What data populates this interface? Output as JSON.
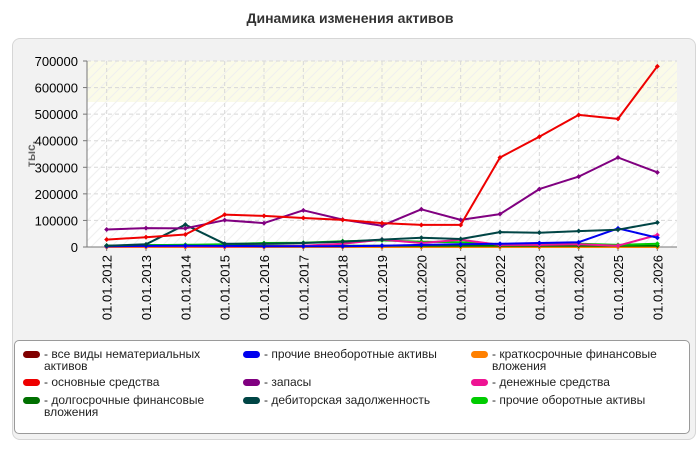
{
  "chart_data": {
    "type": "line",
    "title": "Динамика изменения активов",
    "ylabel": "тыс.",
    "xlabel": "",
    "ylim": [
      0,
      700000
    ],
    "yticks": [
      0,
      100000,
      200000,
      300000,
      400000,
      500000,
      600000,
      700000
    ],
    "ytick_labels": [
      "0",
      "100000",
      "200000",
      "300000",
      "400000",
      "500000",
      "600000",
      "700000"
    ],
    "categories": [
      "01.01.2012",
      "01.01.2013",
      "01.01.2014",
      "01.01.2015",
      "01.01.2016",
      "01.01.2017",
      "01.01.2018",
      "01.01.2019",
      "01.01.2020",
      "01.01.2021",
      "01.01.2022",
      "01.01.2023",
      "01.01.2024",
      "01.01.2025",
      "01.01.2026"
    ],
    "grid": true,
    "legend_position": "bottom",
    "series": [
      {
        "name": "все виды нематериальных активов",
        "color": "#800000",
        "values": [
          0,
          0,
          0,
          0,
          0,
          0,
          0,
          0,
          0,
          0,
          0,
          0,
          0,
          0,
          0
        ]
      },
      {
        "name": "прочие внеоборотные активы",
        "color": "#0000ee",
        "values": [
          3000,
          4000,
          5000,
          4000,
          3000,
          3000,
          3000,
          5000,
          8000,
          10000,
          12000,
          15000,
          18000,
          70000,
          35000
        ]
      },
      {
        "name": "краткосрочные финансовые вложения",
        "color": "#ff8000",
        "values": [
          0,
          0,
          0,
          0,
          0,
          0,
          0,
          0,
          0,
          0,
          0,
          0,
          0,
          0,
          0
        ]
      },
      {
        "name": "основные средства",
        "color": "#ee0000",
        "values": [
          28000,
          37000,
          47000,
          122000,
          117000,
          109000,
          102000,
          90000,
          83000,
          83000,
          337000,
          415000,
          497000,
          482000,
          680000
        ]
      },
      {
        "name": "запасы",
        "color": "#800080",
        "values": [
          66000,
          71000,
          70000,
          101000,
          90000,
          138000,
          103000,
          80000,
          142000,
          102000,
          124000,
          218000,
          265000,
          337000,
          281000
        ]
      },
      {
        "name": "денежные средства",
        "color": "#ee1493",
        "values": [
          2000,
          3000,
          3000,
          2000,
          3000,
          5000,
          12000,
          28000,
          15000,
          27000,
          8000,
          8000,
          10000,
          5000,
          45000
        ]
      },
      {
        "name": "долгосрочные финансовые вложения",
        "color": "#007000",
        "values": [
          5000,
          7000,
          8000,
          6000,
          5000,
          5000,
          5000,
          5000,
          5000,
          5000,
          5000,
          5000,
          5000,
          5000,
          5000
        ]
      },
      {
        "name": "дебиторская задолженность",
        "color": "#004545",
        "values": [
          5000,
          10000,
          84000,
          12000,
          12000,
          15000,
          20000,
          28000,
          35000,
          30000,
          56000,
          54000,
          60000,
          65000,
          92000
        ]
      },
      {
        "name": "прочие оборотные активы",
        "color": "#00cc00",
        "values": [
          5000,
          7000,
          8000,
          10000,
          15000,
          16000,
          22000,
          25000,
          20000,
          18000,
          10000,
          10000,
          12000,
          8000,
          12000
        ]
      }
    ]
  }
}
